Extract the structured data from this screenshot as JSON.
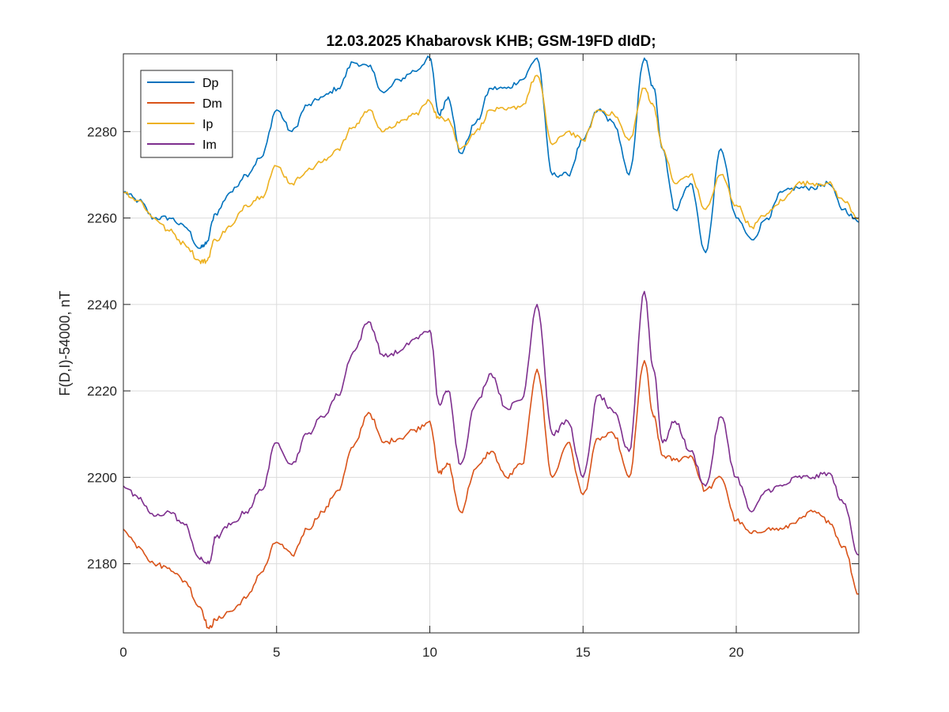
{
  "chart_data": {
    "type": "line",
    "title": "12.03.2025  Khabarovsk KHB; GSM-19FD dIdD;",
    "xlabel": "",
    "ylabel": "F(D,I)-54000, nT",
    "xlim": [
      0,
      24
    ],
    "ylim": [
      2164,
      2298
    ],
    "xticks": [
      0,
      5,
      10,
      15,
      20
    ],
    "yticks": [
      2180,
      2200,
      2220,
      2240,
      2260,
      2280
    ],
    "xtick_labels": [
      "0",
      "5",
      "10",
      "15",
      "20"
    ],
    "ytick_labels": [
      "2180",
      "2200",
      "2220",
      "2240",
      "2260",
      "2280"
    ],
    "grid": true,
    "legend_position": "top-left",
    "series": [
      {
        "name": "Dp",
        "color": "#0072BD",
        "x": [
          0,
          0.5,
          1,
          1.5,
          2,
          2.5,
          2.7,
          3,
          3.5,
          4,
          4.5,
          5,
          5.5,
          6,
          6.5,
          7,
          7.5,
          8,
          8.5,
          9,
          9.5,
          10,
          10.3,
          10.6,
          11,
          11.5,
          12,
          12.5,
          13,
          13.5,
          14,
          14.5,
          15,
          15.5,
          16,
          16.5,
          17,
          17.3,
          17.6,
          18,
          18.5,
          19,
          19.5,
          20,
          20.5,
          21,
          21.5,
          22,
          22.5,
          23,
          23.5,
          24
        ],
        "y": [
          2266,
          2264,
          2260,
          2260,
          2258,
          2253,
          2254,
          2261,
          2266,
          2270,
          2274,
          2285,
          2280,
          2286,
          2288,
          2290,
          2296,
          2295,
          2289,
          2292,
          2294,
          2297,
          2284,
          2288,
          2275,
          2282,
          2290,
          2290,
          2292,
          2297,
          2270,
          2270,
          2278,
          2285,
          2282,
          2270,
          2297,
          2290,
          2276,
          2262,
          2268,
          2252,
          2276,
          2260,
          2255,
          2260,
          2266,
          2267,
          2267,
          2268,
          2262,
          2259
        ]
      },
      {
        "name": "Dm",
        "color": "#D95319",
        "x": [
          0,
          0.5,
          1,
          1.5,
          2,
          2.5,
          2.8,
          3,
          3.5,
          4,
          4.5,
          5,
          5.5,
          6,
          6.5,
          7,
          7.5,
          8,
          8.5,
          9,
          9.5,
          10,
          10.3,
          10.6,
          11,
          11.5,
          12,
          12.5,
          13,
          13.5,
          14,
          14.5,
          15,
          15.5,
          16,
          16.5,
          17,
          17.3,
          17.6,
          18,
          18.5,
          19,
          19.5,
          20,
          20.5,
          21,
          21.5,
          22,
          22.5,
          23,
          23.5,
          24
        ],
        "y": [
          2188,
          2184,
          2180,
          2179,
          2176,
          2170,
          2165,
          2167,
          2169,
          2172,
          2178,
          2185,
          2182,
          2188,
          2192,
          2197,
          2207,
          2215,
          2208,
          2209,
          2211,
          2213,
          2201,
          2203,
          2192,
          2202,
          2206,
          2200,
          2203,
          2225,
          2200,
          2208,
          2196,
          2209,
          2210,
          2200,
          2227,
          2214,
          2205,
          2204,
          2205,
          2197,
          2200,
          2190,
          2187,
          2188,
          2188,
          2190,
          2192,
          2190,
          2184,
          2173
        ]
      },
      {
        "name": "Ip",
        "color": "#EDB120",
        "x": [
          0,
          0.5,
          1,
          1.5,
          2,
          2.5,
          2.7,
          3,
          3.5,
          4,
          4.5,
          5,
          5.5,
          6,
          6.5,
          7,
          7.5,
          8,
          8.5,
          9,
          9.5,
          10,
          10.3,
          10.6,
          11,
          11.5,
          12,
          12.5,
          13,
          13.5,
          14,
          14.5,
          15,
          15.5,
          16,
          16.5,
          17,
          17.3,
          17.6,
          18,
          18.5,
          19,
          19.5,
          20,
          20.5,
          21,
          21.5,
          22,
          22.5,
          23,
          23.5,
          24
        ],
        "y": [
          2266,
          2264,
          2260,
          2257,
          2254,
          2250,
          2250,
          2255,
          2258,
          2263,
          2265,
          2272,
          2268,
          2271,
          2273,
          2276,
          2281,
          2285,
          2280,
          2282,
          2284,
          2287,
          2283,
          2283,
          2276,
          2280,
          2285,
          2285,
          2286,
          2293,
          2277,
          2280,
          2278,
          2285,
          2284,
          2278,
          2290,
          2286,
          2276,
          2268,
          2270,
          2262,
          2270,
          2263,
          2258,
          2261,
          2264,
          2268,
          2268,
          2268,
          2264,
          2260
        ]
      },
      {
        "name": "Im",
        "color": "#7E2F8E",
        "x": [
          0,
          0.5,
          1,
          1.5,
          2,
          2.5,
          2.8,
          3,
          3.5,
          4,
          4.5,
          5,
          5.5,
          6,
          6.5,
          7,
          7.5,
          8,
          8.5,
          9,
          9.5,
          10,
          10.3,
          10.6,
          11,
          11.5,
          12,
          12.5,
          13,
          13.5,
          14,
          14.5,
          15,
          15.5,
          16,
          16.5,
          17,
          17.3,
          17.6,
          18,
          18.5,
          19,
          19.5,
          20,
          20.5,
          21,
          21.5,
          22,
          22.5,
          23,
          23.5,
          24
        ],
        "y": [
          2198,
          2195,
          2191,
          2192,
          2189,
          2181,
          2180,
          2186,
          2189,
          2192,
          2197,
          2208,
          2203,
          2210,
          2214,
          2219,
          2229,
          2236,
          2228,
          2229,
          2232,
          2234,
          2217,
          2220,
          2203,
          2217,
          2224,
          2216,
          2218,
          2240,
          2210,
          2213,
          2200,
          2219,
          2215,
          2206,
          2243,
          2225,
          2208,
          2213,
          2206,
          2198,
          2214,
          2200,
          2192,
          2197,
          2198,
          2200,
          2200,
          2201,
          2194,
          2182
        ]
      }
    ]
  }
}
